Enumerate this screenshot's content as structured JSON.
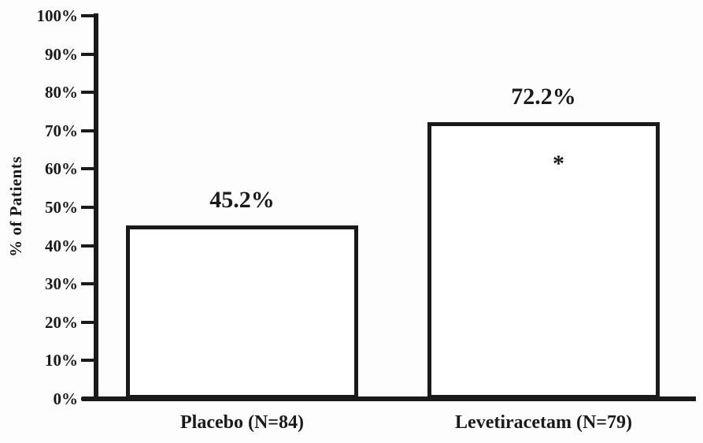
{
  "chart_data": {
    "type": "bar",
    "title": "",
    "categories": [
      "Placebo (N=84)",
      "Levetiracetam (N=79)"
    ],
    "values": [
      45.2,
      72.2
    ],
    "value_labels": [
      "45.2%",
      "72.2%"
    ],
    "bar_annotations": [
      "",
      "*"
    ],
    "xlabel": "",
    "ylabel": "% of Patients",
    "ylim": [
      0,
      100
    ],
    "ytick_labels": [
      "0%",
      "10%",
      "20%",
      "30%",
      "40%",
      "50%",
      "60%",
      "70%",
      "80%",
      "90%",
      "100%"
    ],
    "grid": false,
    "legend": "none",
    "colors": {
      "bar_fill": "#ffffff",
      "bar_border": "#1a1a1a",
      "axis": "#1a1a1a",
      "text": "#1a1a1a",
      "background": "#fdfdfd"
    }
  }
}
